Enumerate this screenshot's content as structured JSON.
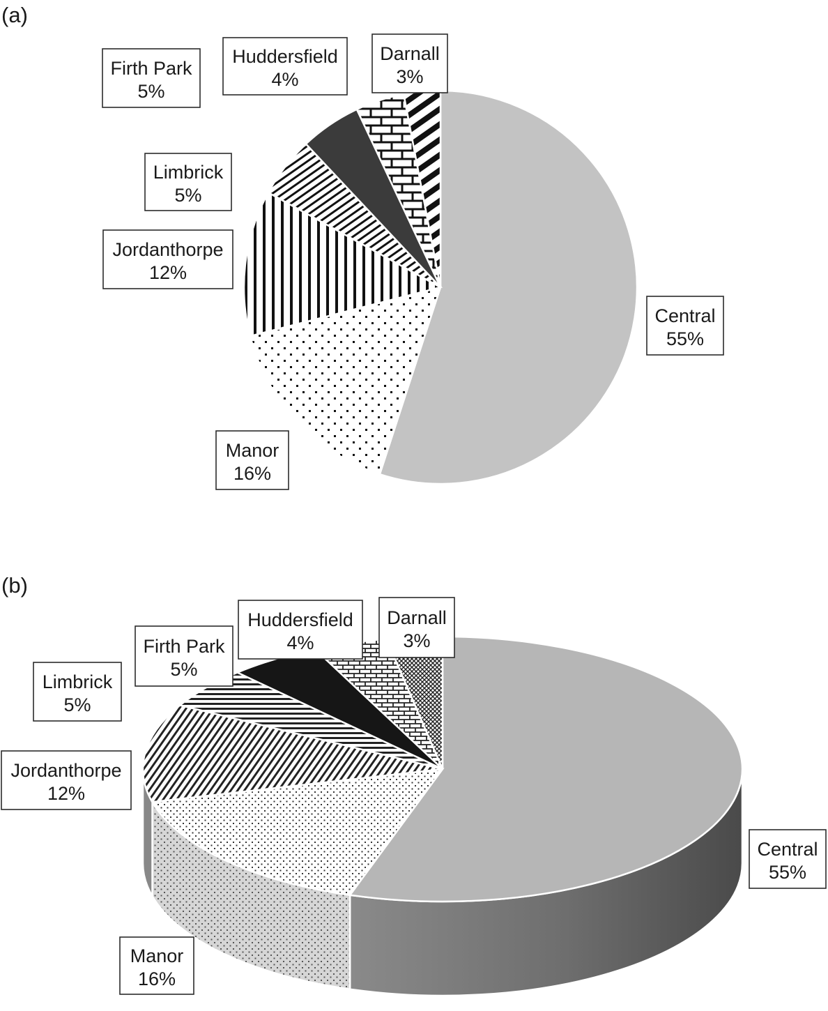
{
  "figure": {
    "panels": [
      "(a)",
      "(b)"
    ]
  },
  "chart_data": [
    {
      "type": "pie",
      "panel": "(a)",
      "style": "2d",
      "categories": [
        "Central",
        "Manor",
        "Jordanthorpe",
        "Limbrick",
        "Firth Park",
        "Huddersfield",
        "Darnall"
      ],
      "values": [
        55,
        16,
        12,
        5,
        5,
        4,
        3
      ],
      "labels": [
        "55%",
        "16%",
        "12%",
        "5%",
        "5%",
        "4%",
        "3%"
      ],
      "fills": [
        "light-gray",
        "dots",
        "vertical-stripes",
        "diagonal-stripes",
        "dark-gray",
        "brick",
        "diagonal-bold"
      ],
      "title": ""
    },
    {
      "type": "pie",
      "panel": "(b)",
      "style": "3d",
      "categories": [
        "Central",
        "Manor",
        "Jordanthorpe",
        "Limbrick",
        "Firth Park",
        "Huddersfield",
        "Darnall"
      ],
      "values": [
        55,
        16,
        12,
        5,
        5,
        4,
        3
      ],
      "labels": [
        "55%",
        "16%",
        "12%",
        "5%",
        "5%",
        "4%",
        "3%"
      ],
      "fills": [
        "light-gray",
        "fine-dots",
        "diagonal-stripes",
        "horizontal-stripes",
        "black",
        "brick-small",
        "crosshatch"
      ],
      "title": ""
    }
  ]
}
